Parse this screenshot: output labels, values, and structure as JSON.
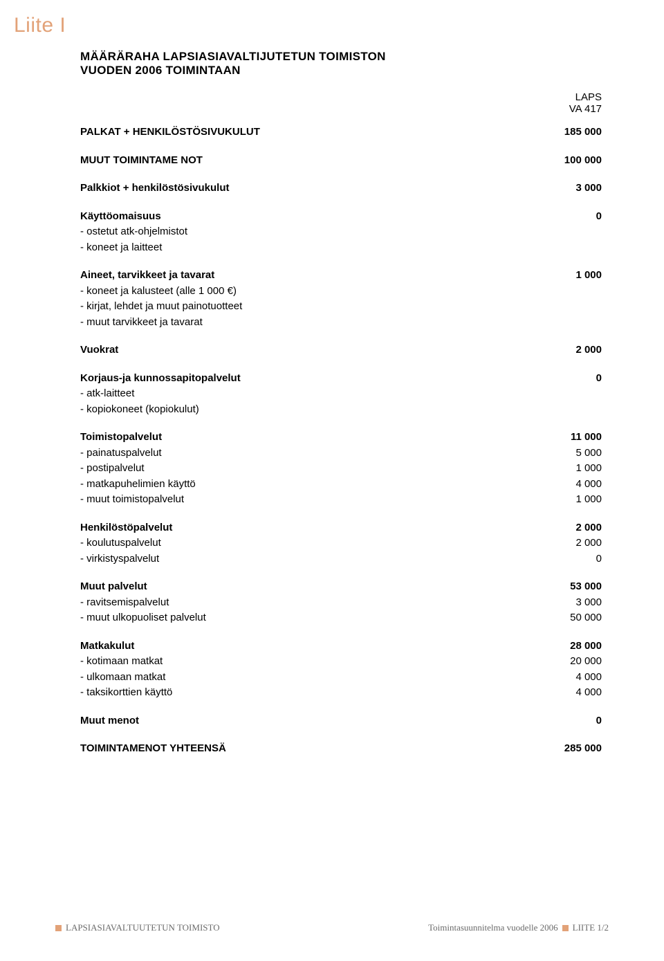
{
  "colors": {
    "accent": "#e2a278",
    "text": "#000000",
    "footer_text": "#6b6b6b",
    "background": "#ffffff"
  },
  "typography": {
    "body_font": "Arial, Helvetica, sans-serif",
    "serif_font": "Georgia, serif",
    "title_fontsize": 17,
    "body_fontsize": 15,
    "liite_fontsize": 30,
    "footer_fontsize": 13
  },
  "liite_label": "Liite I",
  "title_line1": "MÄÄRÄRAHA LAPSIASIAVALTIJUTETUN TOIMISTON",
  "title_line2": "VUODEN 2006 TOIMINTAAN",
  "column_header": {
    "line1": "LAPS",
    "line2": "VA 417"
  },
  "sections": [
    {
      "type": "bold",
      "label": "PALKAT + HENKILÖSTÖSIVUKULUT",
      "value": "185 000"
    },
    {
      "type": "bold",
      "label": "MUUT TOIMINTAME NOT",
      "value": "100 000"
    },
    {
      "type": "bold",
      "label": "Palkkiot + henkilöstösivukulut",
      "value": "3 000"
    },
    {
      "type": "group",
      "header": {
        "label": "Käyttöomaisuus",
        "value": "0"
      },
      "items": [
        {
          "label": "- ostetut atk-ohjelmistot",
          "value": ""
        },
        {
          "label": "- koneet ja laitteet",
          "value": ""
        }
      ]
    },
    {
      "type": "group",
      "header": {
        "label": "Aineet, tarvikkeet ja tavarat",
        "value": "1 000"
      },
      "items": [
        {
          "label": "- koneet ja kalusteet (alle 1 000 €)",
          "value": ""
        },
        {
          "label": "- kirjat, lehdet ja muut painotuotteet",
          "value": ""
        },
        {
          "label": "- muut tarvikkeet ja tavarat",
          "value": ""
        }
      ]
    },
    {
      "type": "bold",
      "label": "Vuokrat",
      "value": "2 000"
    },
    {
      "type": "group",
      "header": {
        "label": "Korjaus-ja kunnossapitopalvelut",
        "value": "0"
      },
      "items": [
        {
          "label": "- atk-laitteet",
          "value": ""
        },
        {
          "label": "- kopiokoneet (kopiokulut)",
          "value": ""
        }
      ]
    },
    {
      "type": "group",
      "header": {
        "label": "Toimistopalvelut",
        "value": "11 000"
      },
      "items": [
        {
          "label": "- painatuspalvelut",
          "value": "5 000"
        },
        {
          "label": "- postipalvelut",
          "value": "1 000"
        },
        {
          "label": "- matkapuhelimien käyttö",
          "value": "4 000"
        },
        {
          "label": "- muut toimistopalvelut",
          "value": "1 000"
        }
      ]
    },
    {
      "type": "group",
      "header": {
        "label": "Henkilöstöpalvelut",
        "value": "2 000"
      },
      "items": [
        {
          "label": "- koulutuspalvelut",
          "value": "2 000"
        },
        {
          "label": "- virkistyspalvelut",
          "value": "0"
        }
      ]
    },
    {
      "type": "group",
      "header": {
        "label": "Muut palvelut",
        "value": "53 000"
      },
      "items": [
        {
          "label": "- ravitsemispalvelut",
          "value": "3 000"
        },
        {
          "label": "- muut ulkopuoliset palvelut",
          "value": "50 000"
        }
      ]
    },
    {
      "type": "group",
      "header": {
        "label": "Matkakulut",
        "value": "28 000"
      },
      "items": [
        {
          "label": "- kotimaan matkat",
          "value": "20 000"
        },
        {
          "label": "- ulkomaan matkat",
          "value": "4 000"
        },
        {
          "label": "- taksikorttien käyttö",
          "value": "4 000"
        }
      ]
    },
    {
      "type": "bold",
      "label": "Muut menot",
      "value": "0"
    },
    {
      "type": "bold",
      "label": "TOIMINTAMENOT YHTEENSÄ",
      "value": "285 000"
    }
  ],
  "footer": {
    "left": "LAPSIASIAVALTUUTETUN TOIMISTO",
    "right_part1": "Toimintasuunnitelma vuodelle 2006",
    "right_part2": "LIITE 1/2"
  }
}
